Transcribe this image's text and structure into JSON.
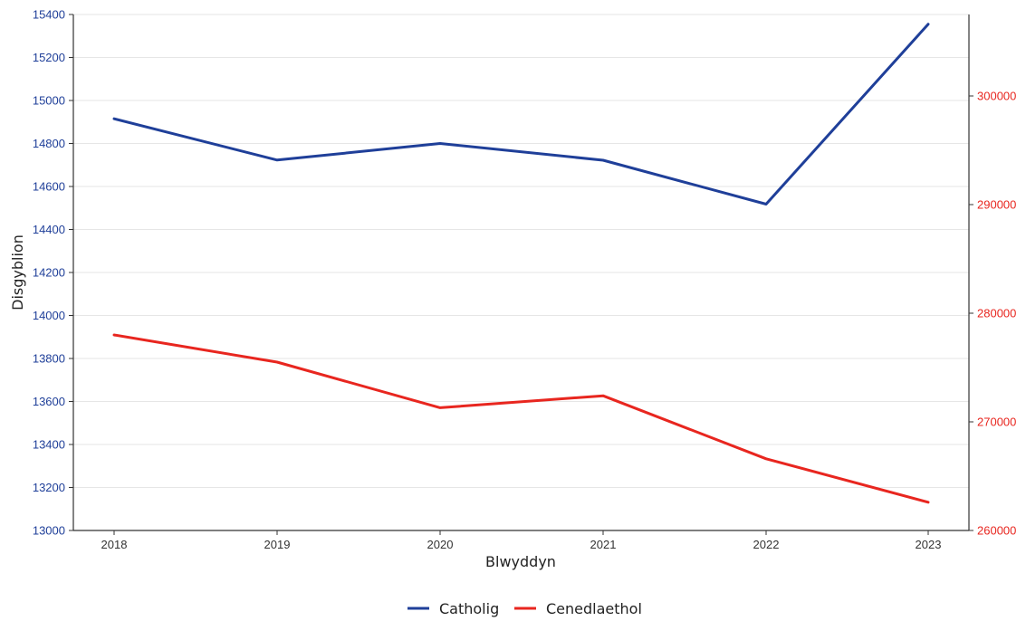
{
  "chart_data": {
    "type": "line",
    "xlabel": "Blwyddyn",
    "ylabel": "Disgyblion",
    "x": [
      "2018",
      "2019",
      "2020",
      "2021",
      "2022",
      "2023"
    ],
    "series": [
      {
        "name": "Catholig",
        "axis": "left",
        "color": "#1f3f99",
        "values": [
          14915,
          14723,
          14800,
          14722,
          14518,
          15355
        ]
      },
      {
        "name": "Cenedlaethol",
        "axis": "right",
        "color": "#e8261f",
        "values": [
          278000,
          275500,
          271300,
          272400,
          266600,
          262600
        ]
      }
    ],
    "ylim": [
      13000,
      15400
    ],
    "y_ticks": [
      "13000",
      "13200",
      "13400",
      "13600",
      "13800",
      "14000",
      "14200",
      "14400",
      "14600",
      "14800",
      "15000",
      "15200",
      "15400"
    ],
    "y2lim": [
      260000,
      307500
    ],
    "y2_ticks": [
      "260000",
      "270000",
      "280000",
      "290000",
      "300000"
    ],
    "grid": true,
    "legend": "bottom"
  }
}
